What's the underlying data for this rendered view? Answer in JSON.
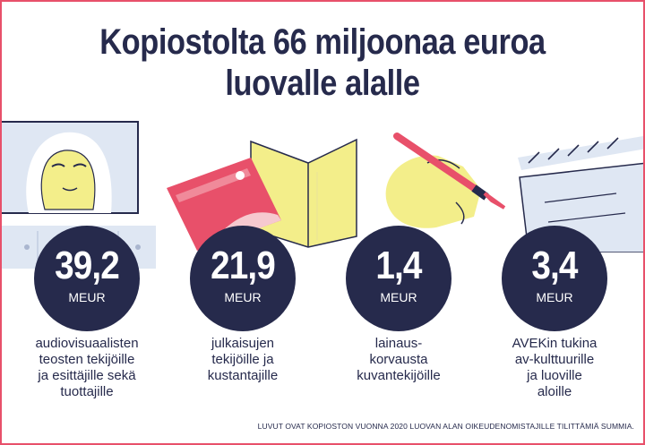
{
  "title": {
    "line1": "Kopiostolta 66 miljoonaa euroa",
    "line2": "luovalle alalle"
  },
  "stats": [
    {
      "value": "39,2",
      "unit": "MEUR",
      "desc": [
        "audiovisuaalisten",
        "teosten tekijöille",
        "ja esittäjille sekä",
        "tuottajille"
      ]
    },
    {
      "value": "21,9",
      "unit": "MEUR",
      "desc": [
        "julkaisujen",
        "tekijöille ja",
        "kustantajille"
      ]
    },
    {
      "value": "1,4",
      "unit": "MEUR",
      "desc": [
        "lainaus-",
        "korvausta",
        "kuvantekijöille"
      ]
    },
    {
      "value": "3,4",
      "unit": "MEUR",
      "desc": [
        "AVEKin tukina",
        "av-kulttuurille",
        "ja luoville",
        "aloille"
      ]
    }
  ],
  "footnote": "LUVUT OVAT KOPIOSTON VUONNA 2020 LUOVAN ALAN OIKEUDENOMISTAJILLE TILITTÄMIÄ SUMMIA.",
  "colors": {
    "navy": "#262a4c",
    "red": "#e8506a",
    "yellow": "#f3ee8a",
    "lightblue": "#dfe7f3",
    "pink": "#f6c9cf"
  }
}
